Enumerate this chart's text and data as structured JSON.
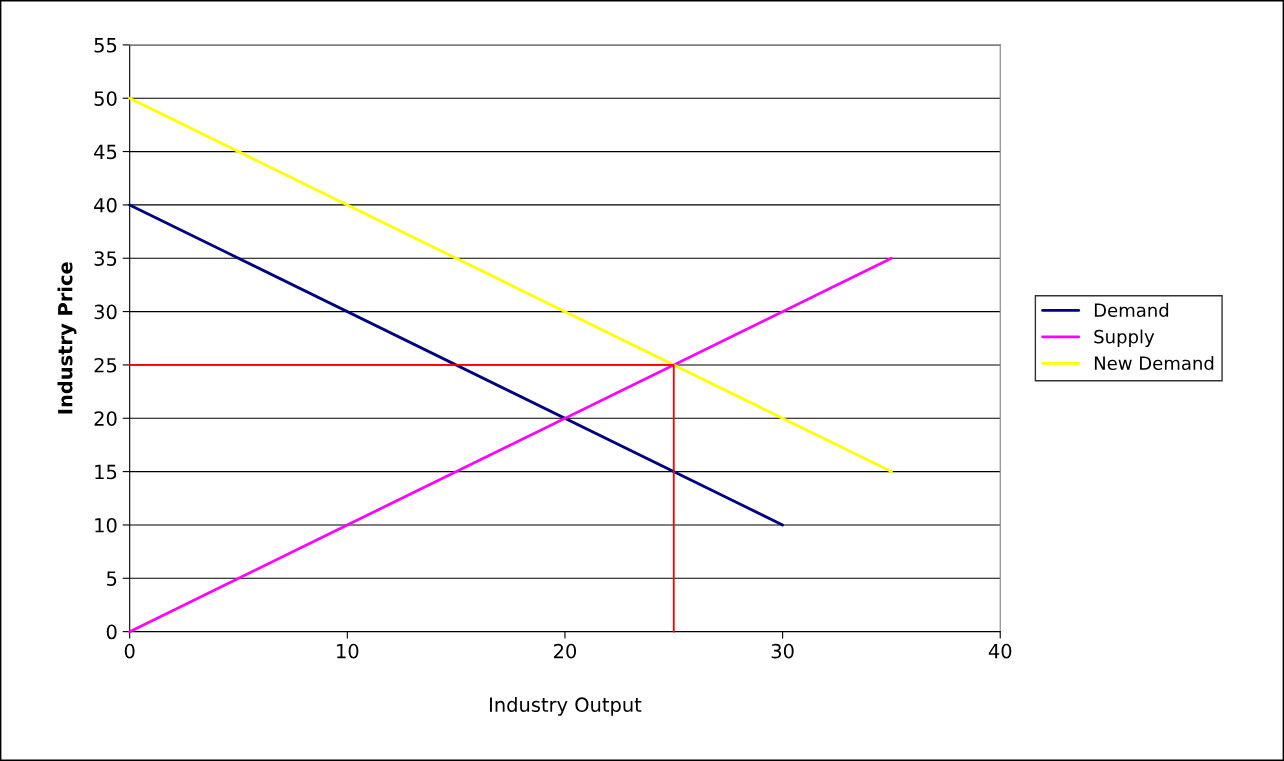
{
  "chart_data": {
    "type": "line",
    "xlabel": "Industry Output",
    "ylabel": "Industry Price",
    "series": [
      {
        "name": "Demand",
        "color": "#000080",
        "x": [
          0,
          30
        ],
        "values": [
          40,
          10
        ]
      },
      {
        "name": "Supply",
        "color": "#ff00ff",
        "x": [
          0,
          35
        ],
        "values": [
          0,
          35
        ]
      },
      {
        "name": "New Demand",
        "color": "#ffff00",
        "x": [
          0,
          35
        ],
        "values": [
          50,
          15
        ]
      },
      {
        "color": "#ff0000",
        "x": [
          0,
          25,
          25
        ],
        "values": [
          25,
          25,
          0
        ]
      }
    ],
    "xlim": [
      0,
      40
    ],
    "xticks": [
      0,
      10,
      20,
      30,
      40
    ],
    "ylim": [
      0,
      55
    ],
    "yticks": [
      0,
      5,
      10,
      15,
      20,
      25,
      30,
      35,
      40,
      45,
      50,
      55
    ],
    "grid": "y",
    "legend": "right",
    "marker": "none",
    "line_style": "solid"
  }
}
